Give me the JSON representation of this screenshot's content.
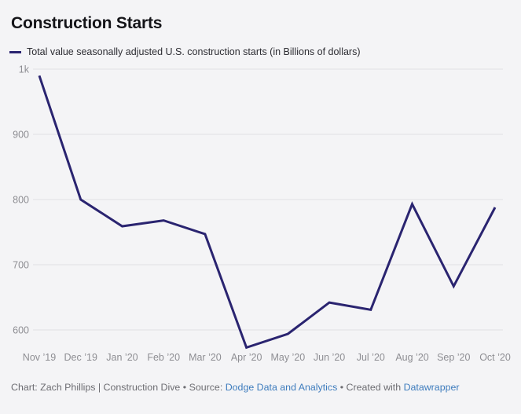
{
  "header": {
    "title": "Construction Starts"
  },
  "legend": {
    "label": "Total value seasonally adjusted U.S. construction starts (in Billions of dollars)"
  },
  "chart_data": {
    "type": "line",
    "title": "Construction Starts",
    "series_name": "Total value seasonally adjusted U.S. construction starts (in Billions of dollars)",
    "categories": [
      "Nov ’19",
      "Dec ’19",
      "Jan ’20",
      "Feb ’20",
      "Mar ’20",
      "Apr ’20",
      "May ’20",
      "Jun ’20",
      "Jul ’20",
      "Aug ’20",
      "Sep ’20",
      "Oct ’20"
    ],
    "values": [
      990,
      800,
      759,
      768,
      747,
      573,
      594,
      642,
      631,
      793,
      667,
      788
    ],
    "y_ticks": [
      {
        "value": 1000,
        "label": "1k"
      },
      {
        "value": 900,
        "label": "900"
      },
      {
        "value": 800,
        "label": "800"
      },
      {
        "value": 700,
        "label": "700"
      },
      {
        "value": 600,
        "label": "600"
      }
    ],
    "ylim": [
      570,
      1000
    ],
    "xlabel": "",
    "ylabel": "",
    "grid": "horizontal",
    "legend_position": "top",
    "line_color": "#2a2470"
  },
  "footer": {
    "prefix": "Chart: Zach Phillips | Construction Dive",
    "separator": " • ",
    "source_label": "Source: ",
    "source_link": "Dodge Data and Analytics",
    "created_label": "Created with ",
    "created_link": "Datawrapper"
  },
  "colors": {
    "background": "#f4f4f6",
    "line": "#2a2470",
    "gridline": "#e0e0e4",
    "tick_label": "#8e8e93",
    "footer_text": "#6d6d72",
    "link": "#3e7cbd",
    "title_text": "#141418"
  }
}
